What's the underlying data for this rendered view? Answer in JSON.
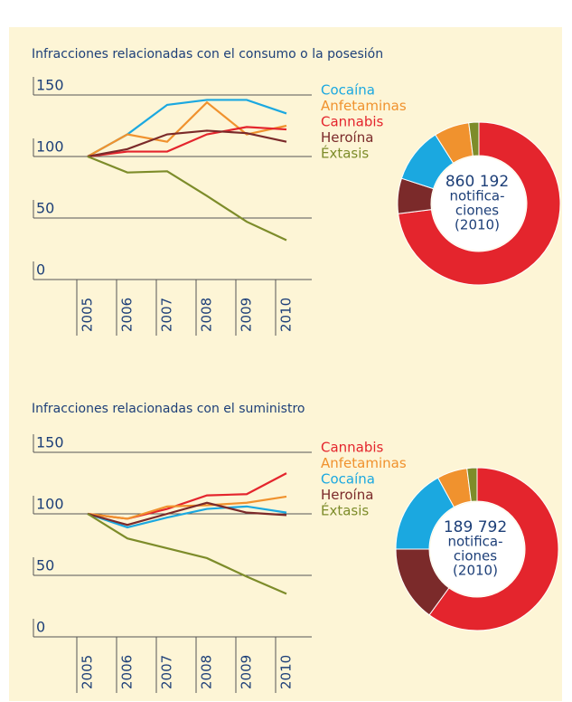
{
  "chart_data": [
    {
      "type": "line",
      "title": "Infracciones relacionadas con el consumo o la posesión",
      "categories": [
        "2005",
        "2006",
        "2007",
        "2008",
        "2009",
        "2010"
      ],
      "ylim": [
        0,
        160
      ],
      "yticks": [
        0,
        50,
        100,
        150
      ],
      "series": [
        {
          "name": "Cocaína",
          "color": "#1ba8e0",
          "values": [
            100,
            118,
            142,
            146,
            146,
            135
          ]
        },
        {
          "name": "Anfetaminas",
          "color": "#f0922e",
          "values": [
            100,
            118,
            112,
            144,
            118,
            125
          ]
        },
        {
          "name": "Cannabis",
          "color": "#e4252d",
          "values": [
            100,
            104,
            104,
            118,
            124,
            122
          ]
        },
        {
          "name": "Heroína",
          "color": "#7b2a2a",
          "values": [
            100,
            106,
            118,
            121,
            119,
            112
          ]
        },
        {
          "name": "Éxtasis",
          "color": "#7d8c2a",
          "values": [
            100,
            87,
            88,
            68,
            47,
            32
          ]
        }
      ]
    },
    {
      "type": "pie",
      "categories": [
        "Cannabis",
        "Heroína",
        "Cocaína",
        "Anfetaminas",
        "Éxtasis"
      ],
      "colors": [
        "#e4252d",
        "#7b2a2a",
        "#1ba8e0",
        "#f0922e",
        "#7d8c2a"
      ],
      "values": [
        73,
        7,
        11,
        7,
        2
      ],
      "center_text": [
        "860 192",
        "notifica-",
        "ciones",
        "(2010)"
      ]
    },
    {
      "type": "line",
      "title": "Infracciones relacionadas con el suministro",
      "categories": [
        "2005",
        "2006",
        "2007",
        "2008",
        "2009",
        "2010"
      ],
      "ylim": [
        0,
        160
      ],
      "yticks": [
        0,
        50,
        100,
        150
      ],
      "series": [
        {
          "name": "Cannabis",
          "color": "#e4252d",
          "values": [
            100,
            96,
            104,
            115,
            116,
            133
          ]
        },
        {
          "name": "Anfetaminas",
          "color": "#f0922e",
          "values": [
            100,
            96,
            106,
            107,
            109,
            114
          ]
        },
        {
          "name": "Cocaína",
          "color": "#1ba8e0",
          "values": [
            100,
            89,
            97,
            104,
            106,
            101
          ]
        },
        {
          "name": "Heroína",
          "color": "#7b2a2a",
          "values": [
            100,
            91,
            100,
            109,
            101,
            99
          ]
        },
        {
          "name": "Éxtasis",
          "color": "#7d8c2a",
          "values": [
            100,
            80,
            72,
            64,
            49,
            35
          ]
        }
      ]
    },
    {
      "type": "pie",
      "categories": [
        "Cannabis",
        "Heroína",
        "Cocaína",
        "Anfetaminas",
        "Éxtasis"
      ],
      "colors": [
        "#e4252d",
        "#7b2a2a",
        "#1ba8e0",
        "#f0922e",
        "#7d8c2a"
      ],
      "values": [
        60,
        15,
        17,
        6,
        2
      ],
      "center_text": [
        "189 792",
        "notifica-",
        "ciones",
        "(2010)"
      ]
    }
  ]
}
